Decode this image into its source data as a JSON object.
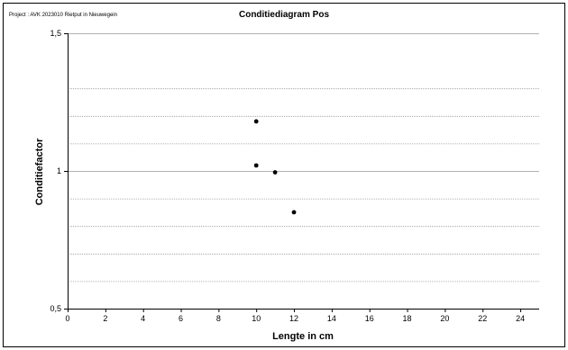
{
  "header": {
    "project": "Project   : AVK 2023010 Rietput in Nieuwegein"
  },
  "chart_data": {
    "type": "scatter",
    "title": "Conditiediagram Pos",
    "xlabel": "Lengte in cm",
    "ylabel": "Conditiefactor",
    "xlim": [
      0,
      25
    ],
    "ylim": [
      0.5,
      1.5
    ],
    "x_ticks": [
      0,
      2,
      4,
      6,
      8,
      10,
      12,
      14,
      16,
      18,
      20,
      22,
      24
    ],
    "y_ticks": [
      0.5,
      1,
      1.5
    ],
    "y_tick_labels": [
      "0,5",
      "1",
      "1,5"
    ],
    "major_grid_y": [
      1,
      1.5
    ],
    "minor_grid_y": [
      0.6,
      0.7,
      0.8,
      0.9,
      1.1,
      1.2,
      1.3
    ],
    "grid": true,
    "legend": "none",
    "series": [
      {
        "points": [
          {
            "x": 10,
            "y": 1.18
          },
          {
            "x": 10,
            "y": 1.02
          },
          {
            "x": 11,
            "y": 0.995
          },
          {
            "x": 12,
            "y": 0.85
          }
        ]
      }
    ],
    "colors": {
      "marker": "#000000",
      "major_grid": "#999999",
      "minor_grid": "#999999",
      "axis": "#000000"
    }
  }
}
